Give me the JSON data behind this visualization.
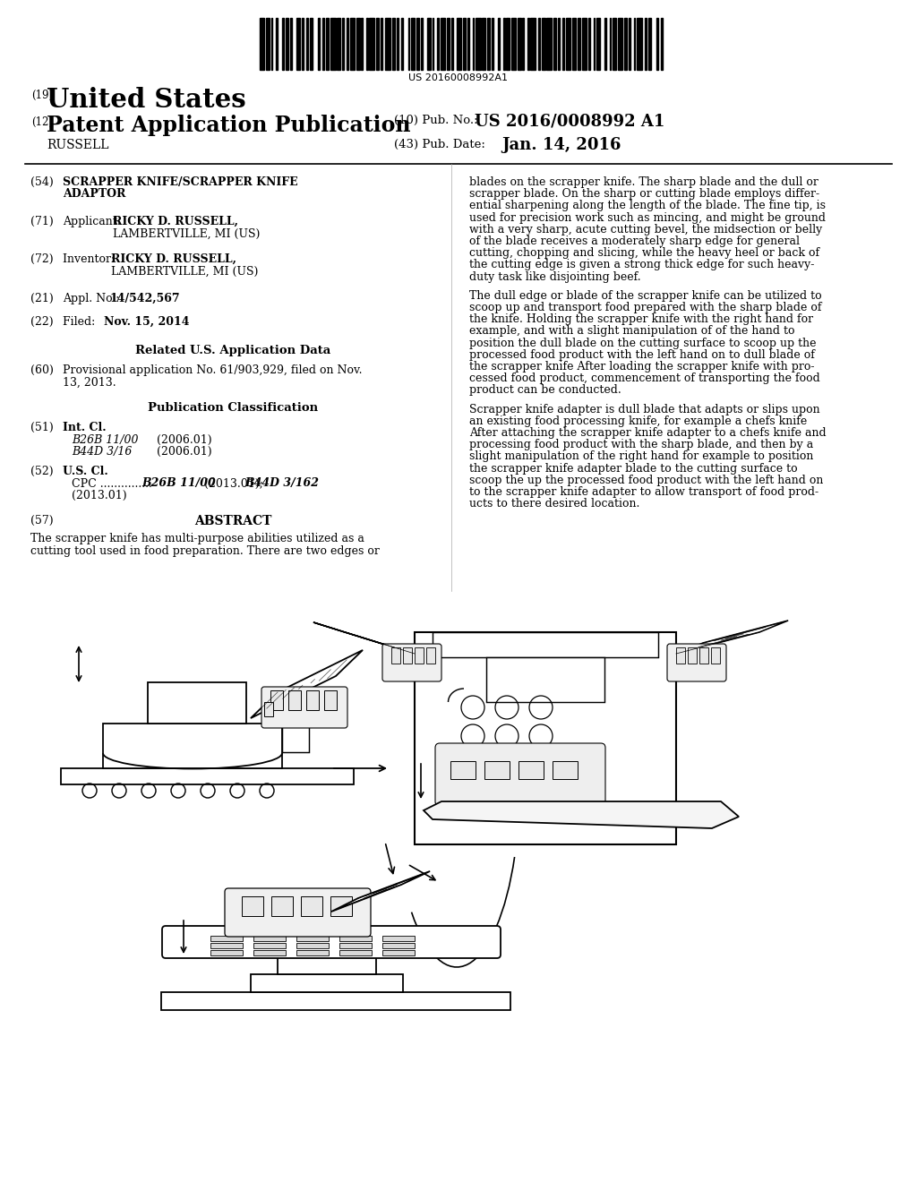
{
  "background_color": "#ffffff",
  "text_color": "#000000",
  "barcode_number": "US 20160008992A1",
  "header_19": "(19)",
  "header_us": "United States",
  "header_12": "(12)",
  "header_pub": "Patent Application Publication",
  "header_russell": "RUSSELL",
  "pub_no_label": "(10) Pub. No.:",
  "pub_no_val": "US 2016/0008992 A1",
  "pub_date_label": "(43) Pub. Date:",
  "pub_date_val": "Jan. 14, 2016",
  "s54_label": "(54)",
  "s54_line1": "SCRAPPER KNIFE/SCRAPPER KNIFE",
  "s54_line2": "ADAPTOR",
  "s71_label": "(71)",
  "s71_pre": "Applicant:",
  "s71_name": "RICKY D. RUSSELL,",
  "s71_city": "LAMBERTVILLE, MI (US)",
  "s72_label": "(72)",
  "s72_pre": "Inventor:",
  "s72_name": "RICKY D. RUSSELL,",
  "s72_city": "LAMBERTVILLE, MI (US)",
  "s21_label": "(21)",
  "s21_pre": "Appl. No.:",
  "s21_val": "14/542,567",
  "s22_label": "(22)",
  "s22_pre": "Filed:",
  "s22_val": "Nov. 15, 2014",
  "rel_header": "Related U.S. Application Data",
  "s60_label": "(60)",
  "s60_text1": "Provisional application No. 61/903,929, filed on Nov.",
  "s60_text2": "13, 2013.",
  "pub_class_header": "Publication Classification",
  "s51_label": "(51)",
  "s51_head": "Int. Cl.",
  "s51_b26b": "B26B 11/00",
  "s51_b26b_yr": "(2006.01)",
  "s51_b44d": "B44D 3/16",
  "s51_b44d_yr": "(2006.01)",
  "s52_label": "(52)",
  "s52_head": "U.S. Cl.",
  "s52_cpc1a": "CPC ...............",
  "s52_cpc1b": "B26B 11/00",
  "s52_cpc1c": "(2013.01);",
  "s52_cpc1d": "B44D 3/162",
  "s52_cpc2": "(2013.01)",
  "s57_label": "(57)",
  "s57_head": "ABSTRACT",
  "abstract1": "The scrapper knife has multi-purpose abilities utilized as a",
  "abstract2": "cutting tool used in food preparation. There are two edges or",
  "rp1_lines": [
    "blades on the scrapper knife. The sharp blade and the dull or",
    "scrapper blade. On the sharp or cutting blade employs differ-",
    "ential sharpening along the length of the blade. The fine tip, is",
    "used for precision work such as mincing, and might be ground",
    "with a very sharp, acute cutting bevel, the midsection or belly",
    "of the blade receives a moderately sharp edge for general",
    "cutting, chopping and slicing, while the heavy heel or back of",
    "the cutting edge is given a strong thick edge for such heavy-",
    "duty task like disjointing beef."
  ],
  "rp2_lines": [
    "The dull edge or blade of the scrapper knife can be utilized to",
    "scoop up and transport food prepared with the sharp blade of",
    "the knife. Holding the scrapper knife with the right hand for",
    "example, and with a slight manipulation of of the hand to",
    "position the dull blade on the cutting surface to scoop up the",
    "processed food product with the left hand on to dull blade of",
    "the scrapper knife After loading the scrapper knife with pro-",
    "cessed food product, commencement of transporting the food",
    "product can be conducted."
  ],
  "rp3_lines": [
    "Scrapper knife adapter is dull blade that adapts or slips upon",
    "an existing food processing knife, for example a chefs knife",
    "After attaching the scrapper knife adapter to a chefs knife and",
    "processing food product with the sharp blade, and then by a",
    "slight manipulation of the right hand for example to position",
    "the scrapper knife adapter blade to the cutting surface to",
    "scoop the up the processed food product with the left hand on",
    "to the scrapper knife adapter to allow transport of food prod-",
    "ucts to there desired location."
  ]
}
